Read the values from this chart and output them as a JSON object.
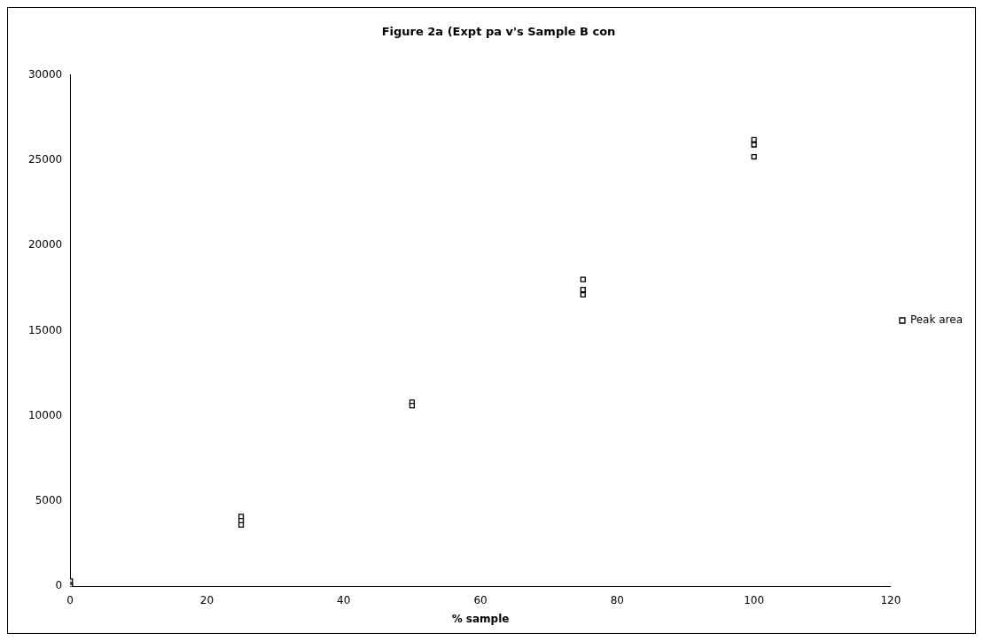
{
  "chart_data": {
    "type": "scatter",
    "title": "Figure 2a (Expt pa v's Sample B con",
    "xlabel": "% sample",
    "x": [
      0,
      0,
      0,
      25,
      25,
      25,
      50,
      50,
      75,
      75,
      75,
      100,
      100,
      100
    ],
    "series": [
      {
        "name": "Peak area",
        "color": "#000000",
        "values": [
          300,
          100,
          0,
          4100,
          3850,
          3600,
          10800,
          10600,
          18000,
          17400,
          17100,
          26200,
          25900,
          25200
        ]
      }
    ],
    "xlim": [
      0,
      120
    ],
    "xticks": [
      0,
      20,
      40,
      60,
      80,
      100,
      120
    ],
    "ylim": [
      0,
      30000
    ],
    "yticks": [
      0,
      5000,
      10000,
      15000,
      20000,
      25000,
      30000
    ],
    "grid": false,
    "legend": "right",
    "marker": "square"
  }
}
